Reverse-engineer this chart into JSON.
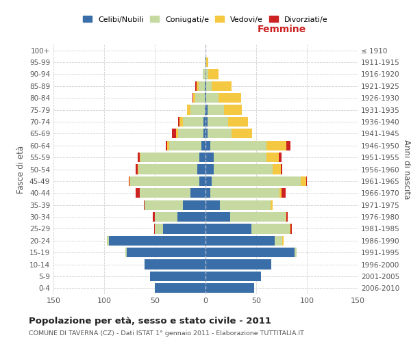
{
  "age_groups": [
    "0-4",
    "5-9",
    "10-14",
    "15-19",
    "20-24",
    "25-29",
    "30-34",
    "35-39",
    "40-44",
    "45-49",
    "50-54",
    "55-59",
    "60-64",
    "65-69",
    "70-74",
    "75-79",
    "80-84",
    "85-89",
    "90-94",
    "95-99",
    "100+"
  ],
  "birth_years": [
    "2006-2010",
    "2001-2005",
    "1996-2000",
    "1991-1995",
    "1986-1990",
    "1981-1985",
    "1976-1980",
    "1971-1975",
    "1966-1970",
    "1961-1965",
    "1956-1960",
    "1951-1955",
    "1946-1950",
    "1941-1945",
    "1936-1940",
    "1931-1935",
    "1926-1930",
    "1921-1925",
    "1916-1920",
    "1911-1915",
    "≤ 1910"
  ],
  "male": {
    "celibe": [
      50,
      55,
      60,
      78,
      95,
      42,
      28,
      22,
      15,
      6,
      8,
      6,
      4,
      2,
      2,
      1,
      1,
      1,
      0,
      0,
      0
    ],
    "coniugato": [
      0,
      0,
      0,
      1,
      2,
      8,
      22,
      38,
      50,
      68,
      58,
      58,
      32,
      25,
      20,
      14,
      9,
      6,
      3,
      1,
      0
    ],
    "vedovo": [
      0,
      0,
      0,
      0,
      0,
      0,
      0,
      0,
      0,
      1,
      1,
      1,
      2,
      2,
      4,
      3,
      2,
      2,
      0,
      0,
      0
    ],
    "divorziato": [
      0,
      0,
      0,
      0,
      0,
      1,
      2,
      1,
      4,
      1,
      2,
      2,
      1,
      4,
      1,
      0,
      1,
      1,
      0,
      0,
      0
    ]
  },
  "female": {
    "nubile": [
      48,
      55,
      65,
      88,
      68,
      45,
      24,
      14,
      5,
      6,
      8,
      8,
      5,
      2,
      2,
      2,
      1,
      1,
      1,
      1,
      0
    ],
    "coniugata": [
      0,
      0,
      0,
      2,
      8,
      38,
      55,
      50,
      68,
      88,
      58,
      52,
      55,
      24,
      20,
      16,
      12,
      5,
      2,
      0,
      0
    ],
    "vedova": [
      0,
      0,
      0,
      0,
      1,
      1,
      1,
      2,
      2,
      5,
      8,
      12,
      20,
      20,
      20,
      18,
      22,
      20,
      10,
      2,
      0
    ],
    "divorziata": [
      0,
      0,
      0,
      0,
      0,
      1,
      1,
      0,
      4,
      1,
      2,
      3,
      4,
      0,
      0,
      0,
      0,
      0,
      0,
      0,
      0
    ]
  },
  "colors": {
    "celibe": "#3a6ea8",
    "coniugato": "#c5d9a0",
    "vedovo": "#f5c842",
    "divorziato": "#cc2222"
  },
  "xlim": 150,
  "title": "Popolazione per età, sesso e stato civile - 2011",
  "subtitle": "COMUNE DI TAVERNA (CZ) - Dati ISTAT 1° gennaio 2011 - Elaborazione TUTTITALIA.IT",
  "xlabel_right": "Femmine",
  "ylabel_left": "Fasce di età",
  "ylabel_right": "Anni di nascita",
  "bg_color": "#ffffff",
  "grid_color": "#cccccc"
}
